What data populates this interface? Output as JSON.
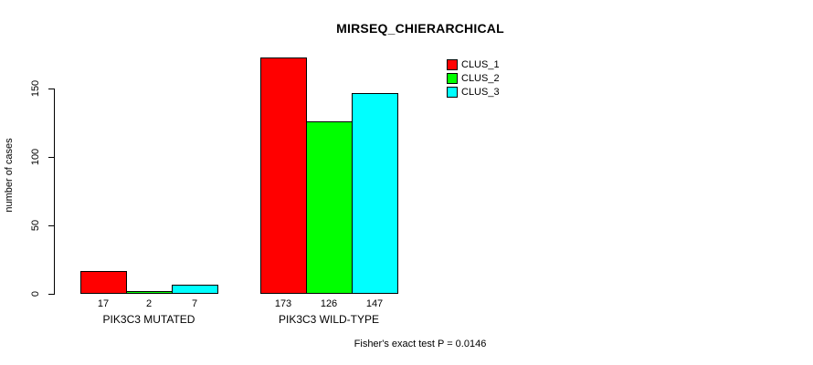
{
  "title": "MIRSEQ_CHIERARCHICAL",
  "footer": "Fisher's exact test P = 0.0146",
  "chart_data": {
    "type": "bar",
    "title": "MIRSEQ_CHIERARCHICAL",
    "categories": [
      "PIK3C3 MUTATED",
      "PIK3C3 WILD-TYPE"
    ],
    "series": [
      {
        "name": "CLUS_1",
        "color": "#ff0000",
        "values": [
          17,
          173
        ]
      },
      {
        "name": "CLUS_2",
        "color": "#00ff00",
        "values": [
          2,
          126
        ]
      },
      {
        "name": "CLUS_3",
        "color": "#00ffff",
        "values": [
          7,
          147
        ]
      }
    ],
    "xlabel": "",
    "ylabel": "number of cases",
    "yticks": [
      0,
      50,
      100,
      150
    ],
    "ylim": [
      0,
      175
    ],
    "grid": false,
    "legend_position": "top-right",
    "bar_value_labels_shown": true
  }
}
